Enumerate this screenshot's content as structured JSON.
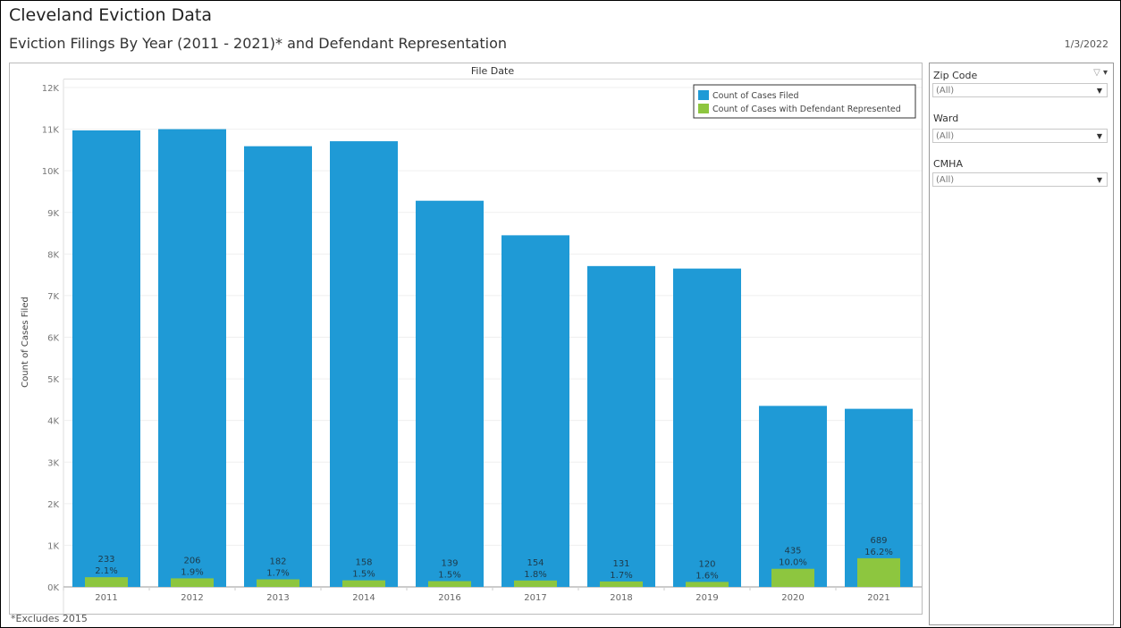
{
  "header": {
    "title": "Cleveland Eviction Data",
    "subtitle": "Eviction Filings By Year (2011 - 2021)* and Defendant Representation",
    "date": "1/3/2022"
  },
  "footnote": "*Excludes 2015",
  "filters": [
    {
      "label": "Zip Code",
      "value": "(All)"
    },
    {
      "label": "Ward",
      "value": "(All)"
    },
    {
      "label": "CMHA",
      "value": "(All)"
    }
  ],
  "colors": {
    "filed": "#1f9ad6",
    "represented": "#8dc63f"
  },
  "chart_data": {
    "type": "bar",
    "column_header": "File Date",
    "ylabel": "Count of Cases Filed",
    "ylim": [
      0,
      12000
    ],
    "ytick_labels": [
      "0K",
      "1K",
      "2K",
      "3K",
      "4K",
      "5K",
      "6K",
      "7K",
      "8K",
      "9K",
      "10K",
      "11K",
      "12K"
    ],
    "categories": [
      "2011",
      "2012",
      "2013",
      "2014",
      "2016",
      "2017",
      "2018",
      "2019",
      "2020",
      "2021"
    ],
    "series": [
      {
        "name": "Count of Cases Filed",
        "values": [
          10970,
          11000,
          10590,
          10710,
          9280,
          8450,
          7710,
          7650,
          4350,
          4280
        ]
      },
      {
        "name": "Count of Cases with Defendant Represented",
        "values": [
          233,
          206,
          182,
          158,
          139,
          154,
          131,
          120,
          435,
          689
        ],
        "value_labels": [
          "233",
          "206",
          "182",
          "158",
          "139",
          "154",
          "131",
          "120",
          "435",
          "689"
        ],
        "pct_labels": [
          "2.1%",
          "1.9%",
          "1.7%",
          "1.5%",
          "1.5%",
          "1.8%",
          "1.7%",
          "1.6%",
          "10.0%",
          "16.2%"
        ]
      }
    ],
    "legend_position": "top-right"
  }
}
